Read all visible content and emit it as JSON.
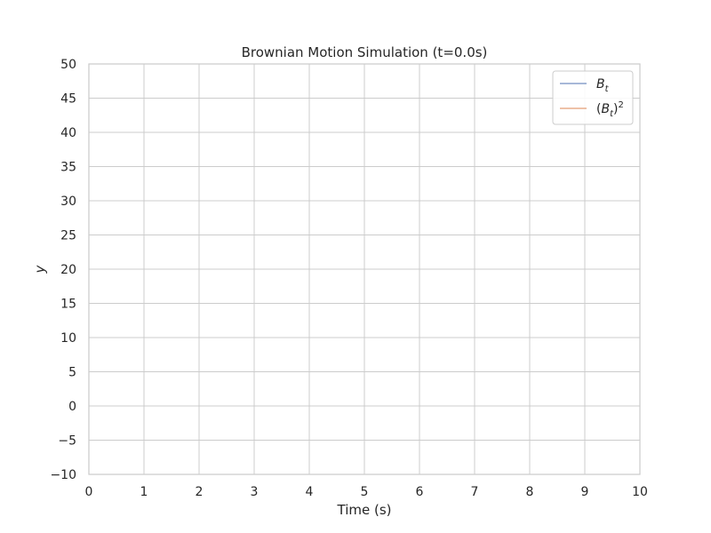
{
  "chart_data": {
    "type": "line",
    "title": "Brownian Motion Simulation (t=0.0s)",
    "xlabel": "Time (s)",
    "ylabel": "y",
    "xlim": [
      0,
      10
    ],
    "ylim": [
      -10,
      50
    ],
    "x_ticks": [
      "0",
      "1",
      "2",
      "3",
      "4",
      "5",
      "6",
      "7",
      "8",
      "9",
      "10"
    ],
    "y_ticks": [
      "−10",
      "−5",
      "0",
      "5",
      "10",
      "15",
      "20",
      "25",
      "30",
      "35",
      "40",
      "45",
      "50"
    ],
    "grid": true,
    "legend_position": "top-right",
    "series": [
      {
        "name": "B_t",
        "color": "#4c72b0",
        "x": [],
        "y": []
      },
      {
        "name": "(B_t)^2",
        "color": "#dd8452",
        "x": [],
        "y": []
      }
    ]
  }
}
